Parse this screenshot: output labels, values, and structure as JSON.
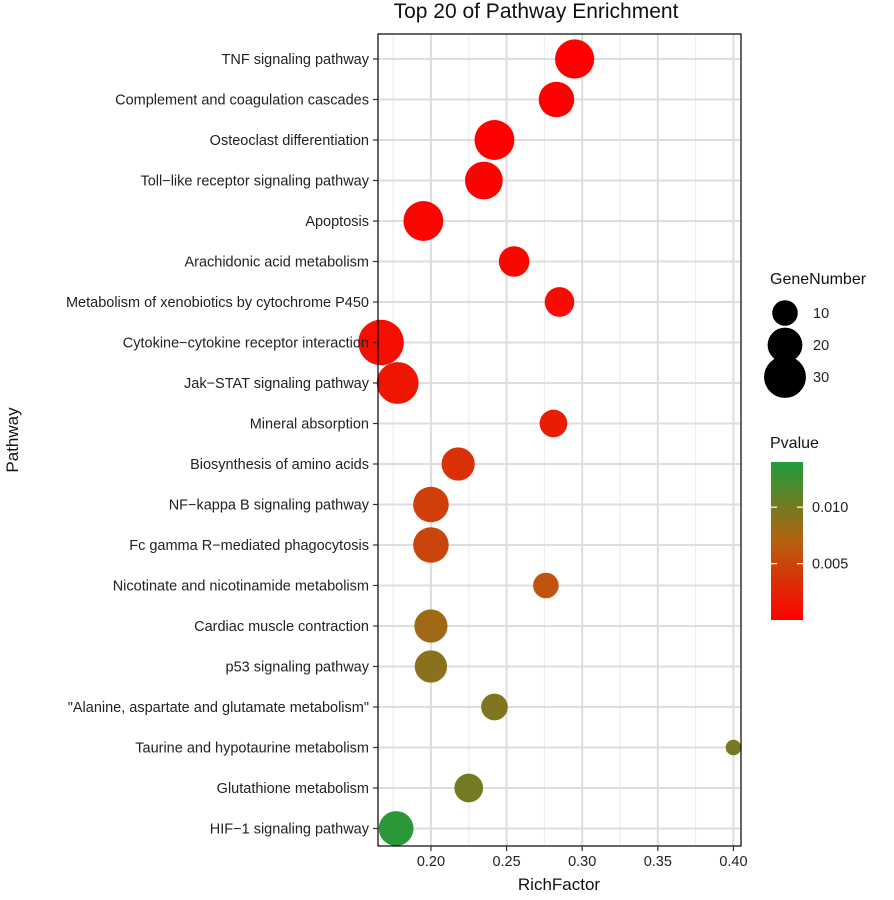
{
  "chart_data": {
    "type": "scatter",
    "title": "Top 20 of Pathway Enrichment",
    "xlabel": "RichFactor",
    "ylabel": "Pathway",
    "xlim": [
      0.165,
      0.405
    ],
    "xticks": [
      0.2,
      0.25,
      0.3,
      0.35,
      0.4
    ],
    "xtick_labels": [
      "0.20",
      "0.25",
      "0.30",
      "0.35",
      "0.40"
    ],
    "grid": true,
    "points": [
      {
        "pathway": "TNF signaling pathway",
        "rich_factor": 0.295,
        "gene_number": 26,
        "pvalue": 2e-05
      },
      {
        "pathway": "Complement and coagulation cascades",
        "rich_factor": 0.283,
        "gene_number": 21,
        "pvalue": 5e-05
      },
      {
        "pathway": "Osteoclast differentiation",
        "rich_factor": 0.242,
        "gene_number": 27,
        "pvalue": 0.0001
      },
      {
        "pathway": "Toll-like receptor signaling pathway",
        "rich_factor": 0.235,
        "gene_number": 24,
        "pvalue": 0.0002
      },
      {
        "pathway": "Apoptosis",
        "rich_factor": 0.195,
        "gene_number": 27,
        "pvalue": 0.0004
      },
      {
        "pathway": "Arachidonic acid metabolism",
        "rich_factor": 0.255,
        "gene_number": 15,
        "pvalue": 0.0006
      },
      {
        "pathway": "Metabolism of xenobiotics by cytochrome P450",
        "rich_factor": 0.285,
        "gene_number": 14,
        "pvalue": 0.0008
      },
      {
        "pathway": "Cytokine-cytokine receptor interaction",
        "rich_factor": 0.167,
        "gene_number": 36,
        "pvalue": 0.001
      },
      {
        "pathway": "Jak-STAT signaling pathway",
        "rich_factor": 0.178,
        "gene_number": 30,
        "pvalue": 0.0015
      },
      {
        "pathway": "Mineral absorption",
        "rich_factor": 0.281,
        "gene_number": 12,
        "pvalue": 0.002
      },
      {
        "pathway": "Biosynthesis of amino acids",
        "rich_factor": 0.218,
        "gene_number": 18,
        "pvalue": 0.0035
      },
      {
        "pathway": "NF-kappa B signaling pathway",
        "rich_factor": 0.2,
        "gene_number": 21,
        "pvalue": 0.0045
      },
      {
        "pathway": "Fc gamma R-mediated phagocytosis",
        "rich_factor": 0.2,
        "gene_number": 21,
        "pvalue": 0.005
      },
      {
        "pathway": "Nicotinate and nicotinamide metabolism",
        "rich_factor": 0.276,
        "gene_number": 10,
        "pvalue": 0.006
      },
      {
        "pathway": "Cardiac muscle contraction",
        "rich_factor": 0.2,
        "gene_number": 18,
        "pvalue": 0.008
      },
      {
        "pathway": "p53 signaling pathway",
        "rich_factor": 0.2,
        "gene_number": 17,
        "pvalue": 0.009
      },
      {
        "pathway": "\"Alanine, aspartate and glutamate metabolism\"",
        "rich_factor": 0.242,
        "gene_number": 11,
        "pvalue": 0.0095
      },
      {
        "pathway": "Taurine and hypotaurine metabolism",
        "rich_factor": 0.4,
        "gene_number": 3,
        "pvalue": 0.0098
      },
      {
        "pathway": "Glutathione metabolism",
        "rich_factor": 0.225,
        "gene_number": 13,
        "pvalue": 0.01
      },
      {
        "pathway": "HIF-1 signaling pathway",
        "rich_factor": 0.177,
        "gene_number": 20,
        "pvalue": 0.0135
      }
    ],
    "size_legend": {
      "title": "GeneNumber",
      "values": [
        10,
        20,
        30
      ],
      "labels": [
        "10",
        "20",
        "30"
      ]
    },
    "color_legend": {
      "title": "Pvalue",
      "range": [
        1e-05,
        0.014
      ],
      "ticks": [
        0.005,
        0.01
      ],
      "tick_labels": [
        "0.005",
        "0.010"
      ],
      "low_color": "#ff0000",
      "high_color": "#1f9c3c"
    }
  }
}
